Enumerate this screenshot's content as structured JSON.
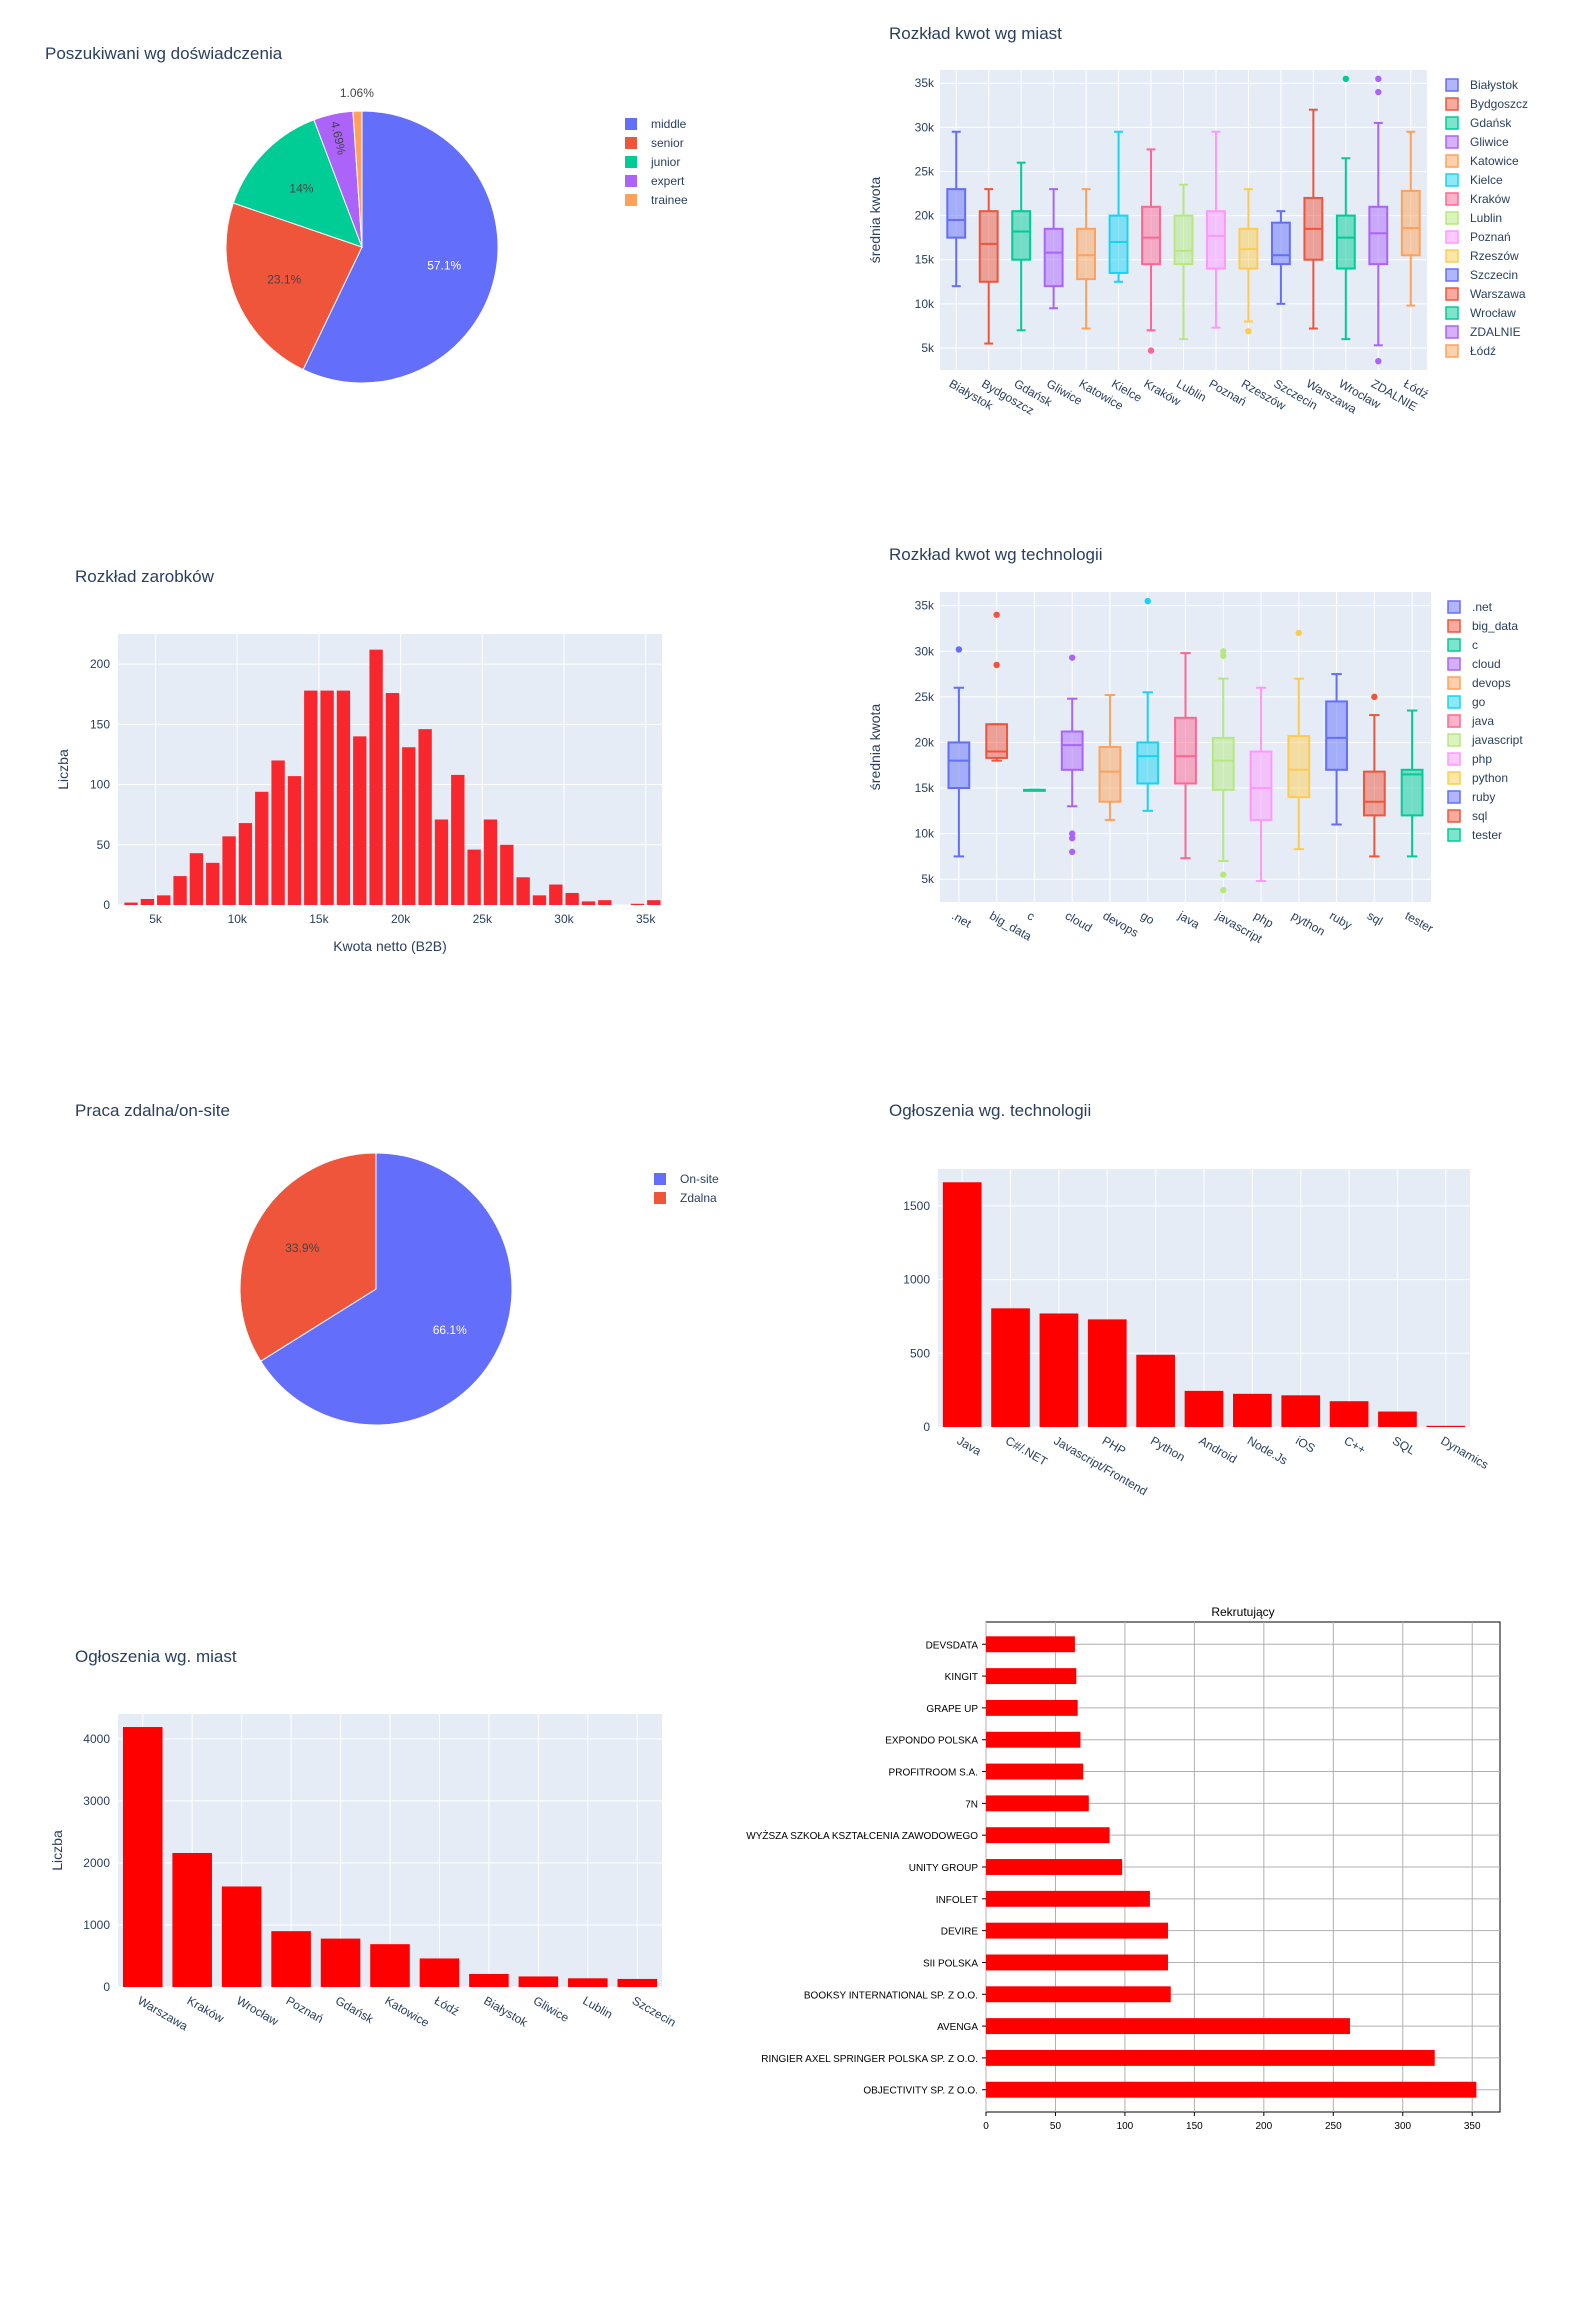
{
  "chart_data": [
    {
      "id": "experience_pie",
      "type": "pie",
      "title": "Poszukiwani wg doświadczenia",
      "labels": [
        "middle",
        "senior",
        "junior",
        "expert",
        "trainee"
      ],
      "values": [
        57.1,
        23.1,
        14,
        4.69,
        1.06
      ],
      "text_labels": [
        "57.1%",
        "23.1%",
        "14%",
        "4.69%",
        "1.06%"
      ],
      "colors": [
        "#636efa",
        "#ef553b",
        "#00cc96",
        "#ab63fa",
        "#ffa15a"
      ],
      "legend": "right"
    },
    {
      "id": "city_box",
      "type": "box",
      "title": "Rozkład kwot wg miast",
      "ylabel": "średnia kwota",
      "ylim": [
        2500,
        36500
      ],
      "yticks": [
        5000,
        10000,
        15000,
        20000,
        25000,
        30000,
        35000
      ],
      "ytick_labels": [
        "5k",
        "10k",
        "15k",
        "20k",
        "25k",
        "30k",
        "35k"
      ],
      "categories": [
        "Białystok",
        "Bydgoszcz",
        "Gdańsk",
        "Gliwice",
        "Katowice",
        "Kielce",
        "Kraków",
        "Lublin",
        "Poznań",
        "Rzeszów",
        "Szczecin",
        "Warszawa",
        "Wrocław",
        "ZDALNIE",
        "Łódź"
      ],
      "colors": [
        "#636efa",
        "#ef553b",
        "#00cc96",
        "#ab63fa",
        "#ffa15a",
        "#19d3f3",
        "#ff6692",
        "#b6e880",
        "#ff97ff",
        "#fecb52",
        "#636efa",
        "#ef553b",
        "#00cc96",
        "#ab63fa",
        "#ffa15a"
      ],
      "boxes": [
        [
          12000,
          17500,
          19500,
          23000,
          29500
        ],
        [
          5500,
          12500,
          16800,
          20500,
          23000
        ],
        [
          7000,
          15000,
          18200,
          20500,
          26000
        ],
        [
          9500,
          12000,
          15800,
          18500,
          23000
        ],
        [
          7200,
          12800,
          15500,
          18500,
          23000
        ],
        [
          12500,
          13500,
          17000,
          20000,
          29500
        ],
        [
          7000,
          14500,
          17500,
          21000,
          27500
        ],
        [
          6000,
          14500,
          16000,
          20000,
          23500
        ],
        [
          7300,
          14000,
          17700,
          20500,
          29500
        ],
        [
          8000,
          14000,
          16200,
          18500,
          23000
        ],
        [
          10000,
          14500,
          15500,
          19200,
          20500
        ],
        [
          7200,
          15000,
          18500,
          22000,
          32000
        ],
        [
          6000,
          14000,
          17500,
          20000,
          26500
        ],
        [
          5300,
          14500,
          18000,
          21000,
          30500
        ],
        [
          9800,
          15500,
          18600,
          22800,
          29500
        ]
      ],
      "outliers": [
        [],
        [],
        [],
        [],
        [],
        [],
        [
          4700
        ],
        [],
        [],
        [
          6900
        ],
        [],
        [],
        [
          35500
        ],
        [
          35500,
          34000,
          3500
        ],
        []
      ],
      "legend": "right"
    },
    {
      "id": "salary_hist",
      "type": "bar",
      "title": "Rozkład zarobków",
      "xlabel": "Kwota netto (B2B)",
      "ylabel": "Liczba",
      "xlim": [
        2700,
        36000
      ],
      "xticks": [
        5000,
        10000,
        15000,
        20000,
        25000,
        30000,
        35000
      ],
      "xtick_labels": [
        "5k",
        "10k",
        "15k",
        "20k",
        "25k",
        "30k",
        "35k"
      ],
      "ylim": [
        0,
        225
      ],
      "yticks": [
        0,
        50,
        100,
        150,
        200
      ],
      "bin_width": 1000,
      "bin_starts": [
        3000,
        4000,
        5000,
        6000,
        7000,
        8000,
        9000,
        10000,
        11000,
        12000,
        13000,
        14000,
        15000,
        16000,
        17000,
        18000,
        19000,
        20000,
        21000,
        22000,
        23000,
        24000,
        25000,
        26000,
        27000,
        28000,
        29000,
        30000,
        31000,
        32000,
        33000,
        34000,
        35000
      ],
      "values": [
        2,
        5,
        8,
        24,
        43,
        35,
        57,
        68,
        94,
        120,
        107,
        178,
        178,
        178,
        140,
        212,
        176,
        131,
        146,
        71,
        108,
        46,
        71,
        50,
        23,
        8,
        17,
        10,
        3,
        4,
        0,
        1,
        4
      ],
      "color": "#f8262d"
    },
    {
      "id": "tech_box",
      "type": "box",
      "title": "Rozkład kwot wg technologii",
      "ylabel": "średnia kwota",
      "ylim": [
        2500,
        36500
      ],
      "yticks": [
        5000,
        10000,
        15000,
        20000,
        25000,
        30000,
        35000
      ],
      "ytick_labels": [
        "5k",
        "10k",
        "15k",
        "20k",
        "25k",
        "30k",
        "35k"
      ],
      "categories": [
        ".net",
        "big_data",
        "c",
        "cloud",
        "devops",
        "go",
        "java",
        "javascript",
        "php",
        "python",
        "ruby",
        "sql",
        "tester"
      ],
      "colors": [
        "#636efa",
        "#ef553b",
        "#00cc96",
        "#ab63fa",
        "#ffa15a",
        "#19d3f3",
        "#ff6692",
        "#b6e880",
        "#ff97ff",
        "#fecb52",
        "#636efa",
        "#ef553b",
        "#00cc96"
      ],
      "boxes": [
        [
          7500,
          15000,
          18000,
          20000,
          26000
        ],
        [
          18000,
          18300,
          19000,
          22000,
          22000
        ],
        [
          14800,
          14800,
          14800,
          14800,
          14800
        ],
        [
          13000,
          17000,
          19700,
          21200,
          24800
        ],
        [
          11500,
          13500,
          16800,
          19500,
          25200
        ],
        [
          12500,
          15500,
          18500,
          20000,
          25500
        ],
        [
          7300,
          15500,
          18500,
          22700,
          29800
        ],
        [
          7000,
          14800,
          18000,
          20500,
          27000
        ],
        [
          4800,
          11500,
          15000,
          19000,
          26000
        ],
        [
          8300,
          14000,
          17000,
          20700,
          27000
        ],
        [
          11000,
          17000,
          20500,
          24500,
          27500
        ],
        [
          7500,
          12000,
          13500,
          16800,
          23000
        ],
        [
          7500,
          12000,
          16500,
          17000,
          23500
        ]
      ],
      "outliers": [
        [
          30200
        ],
        [
          34000,
          28500
        ],
        [],
        [
          29300,
          10000,
          9500,
          8000
        ],
        [],
        [
          35500
        ],
        [],
        [
          30000,
          29500,
          5500,
          3800
        ],
        [],
        [
          32000
        ],
        [],
        [
          25000
        ],
        []
      ],
      "legend": "right"
    },
    {
      "id": "remote_pie",
      "type": "pie",
      "title": "Praca zdalna/on-site",
      "labels": [
        "On-site",
        "Zdalna"
      ],
      "values": [
        66.1,
        33.9
      ],
      "text_labels": [
        "66.1%",
        "33.9%"
      ],
      "colors": [
        "#636efa",
        "#ef553b"
      ],
      "legend": "right"
    },
    {
      "id": "tech_bar",
      "type": "bar",
      "title": "Ogłoszenia wg. technologii",
      "categories": [
        "Java",
        "C#/.NET",
        "Javascript/Frontend",
        "PHP",
        "Python",
        "Android",
        "Node.Js",
        "iOS",
        "C++",
        "SQL",
        "Dynamics"
      ],
      "values": [
        1660,
        805,
        770,
        730,
        490,
        245,
        225,
        215,
        175,
        105,
        8
      ],
      "ylim": [
        0,
        1750
      ],
      "yticks": [
        0,
        500,
        1000,
        1500
      ],
      "color": "#ff0000"
    },
    {
      "id": "city_bar",
      "type": "bar",
      "title": "Ogłoszenia wg. miast",
      "ylabel": "Liczba",
      "categories": [
        "Warszawa",
        "Kraków",
        "Wrocław",
        "Poznań",
        "Gdańsk",
        "Katowice",
        "Łódź",
        "Białystok",
        "Gliwice",
        "Lublin",
        "Szczecin"
      ],
      "values": [
        4190,
        2160,
        1620,
        900,
        780,
        690,
        460,
        210,
        170,
        140,
        130
      ],
      "ylim": [
        0,
        4400
      ],
      "yticks": [
        0,
        1000,
        2000,
        3000,
        4000
      ],
      "color": "#ff0000"
    },
    {
      "id": "recruiters_barh",
      "type": "bar",
      "orientation": "horizontal",
      "title": "Rekrutujący",
      "categories": [
        "DEVSDATA",
        "KINGIT",
        "GRAPE UP",
        "EXPONDO POLSKA",
        "PROFITROOM S.A.",
        "7N",
        "WYŻSZA SZKOŁA KSZTAŁCENIA ZAWODOWEGO",
        "UNITY GROUP",
        "INFOLET",
        "DEVIRE",
        "SII POLSKA",
        "BOOKSY INTERNATIONAL SP. Z O.O.",
        "AVENGA",
        "RINGIER AXEL SPRINGER POLSKA SP. Z O.O.",
        "OBJECTIVITY SP. Z O.O."
      ],
      "values": [
        64,
        65,
        66,
        68,
        70,
        74,
        89,
        98,
        118,
        131,
        131,
        133,
        262,
        323,
        353
      ],
      "xlim": [
        0,
        370
      ],
      "xticks": [
        0,
        50,
        100,
        150,
        200,
        250,
        300,
        350
      ],
      "color": "#ff0000",
      "grid": true
    }
  ]
}
